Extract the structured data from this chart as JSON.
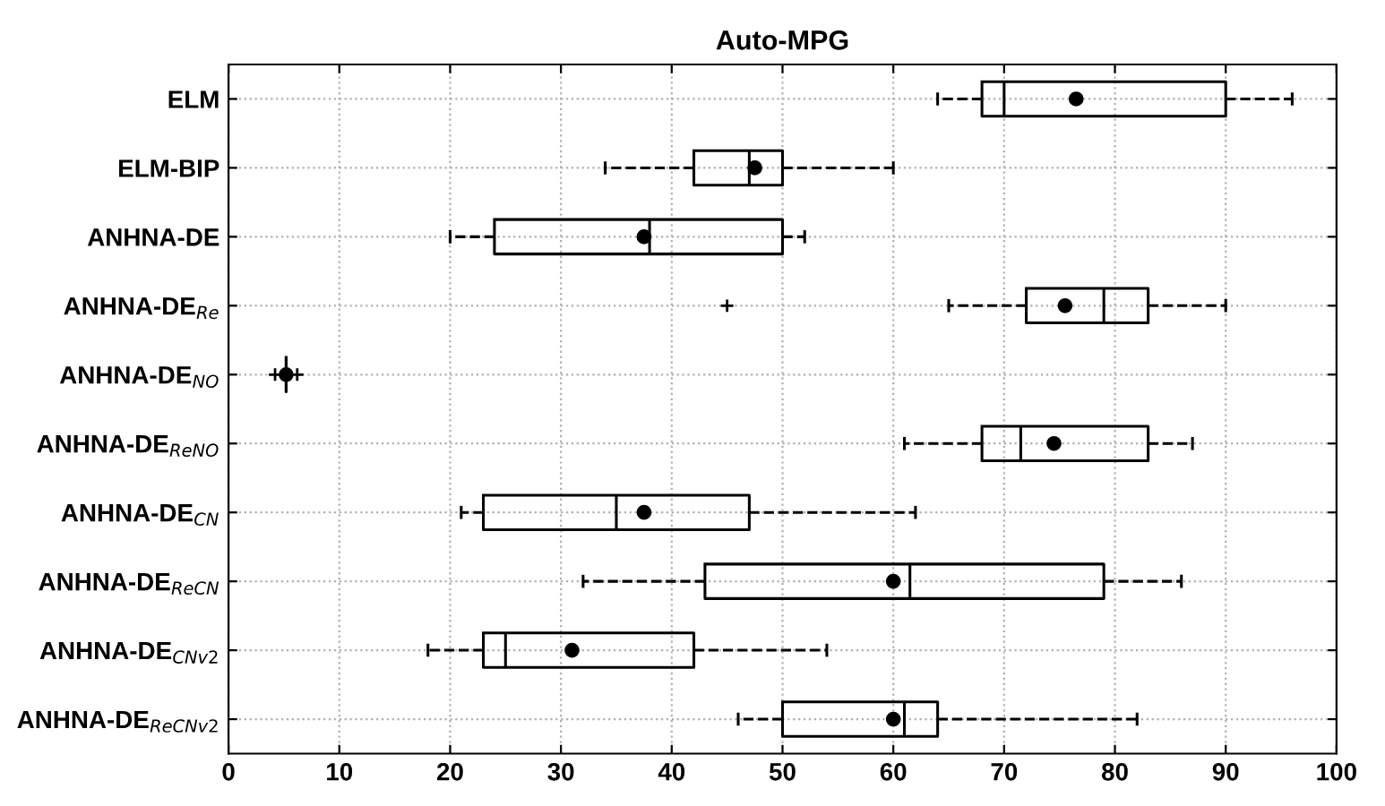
{
  "chart_data": {
    "type": "box",
    "title": "Auto-MPG",
    "orientation": "horizontal",
    "categories": [
      "ELM",
      "ELM-BIP",
      "ANHNA-DE",
      "ANHNA-DE$_{Re}$",
      "ANHNA-DE$_{NO}$",
      "ANHNA-DE$_{ReNO}$",
      "ANHNA-DE$_{CN}$",
      "ANHNA-DE$_{ReCN}$",
      "ANHNA-DE$_{CNv2}$",
      "ANHNA-DE$_{ReCNv2}$"
    ],
    "boxes": [
      {
        "low": 64,
        "q1": 68,
        "median": 70,
        "q3": 90,
        "high": 96,
        "mean": 76.5
      },
      {
        "low": 34,
        "q1": 42,
        "median": 47,
        "q3": 50,
        "high": 60,
        "mean": 47.5
      },
      {
        "low": 20,
        "q1": 24,
        "median": 38,
        "q3": 50,
        "high": 52,
        "mean": 37.5
      },
      {
        "low": 65,
        "q1": 72,
        "median": 79,
        "q3": 83,
        "high": 90,
        "mean": 75.5,
        "outliers": [
          45
        ]
      },
      {
        "low": 5.2,
        "q1": 5.2,
        "median": 5.2,
        "q3": 5.2,
        "high": 5.2,
        "mean": 5.2,
        "outliers": [
          4.2,
          6.2
        ]
      },
      {
        "low": 61,
        "q1": 68,
        "median": 71.5,
        "q3": 83,
        "high": 87,
        "mean": 74.5
      },
      {
        "low": 21,
        "q1": 23,
        "median": 35,
        "q3": 47,
        "high": 62,
        "mean": 37.5
      },
      {
        "low": 32,
        "q1": 43,
        "median": 61.5,
        "q3": 79,
        "high": 86,
        "mean": 60
      },
      {
        "low": 18,
        "q1": 23,
        "median": 25,
        "q3": 42,
        "high": 54,
        "mean": 31
      },
      {
        "low": 46,
        "q1": 50,
        "median": 61,
        "q3": 64,
        "high": 82,
        "mean": 60
      }
    ],
    "color": "#000000",
    "xlim": [
      0,
      100
    ],
    "xticks": [
      0,
      10,
      20,
      30,
      40,
      50,
      60,
      70,
      80,
      90,
      100
    ],
    "grid": true,
    "line_style": "dashed"
  }
}
